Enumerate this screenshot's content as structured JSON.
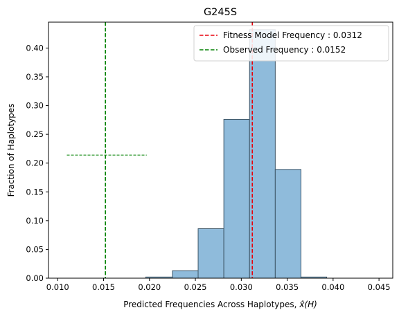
{
  "chart_data": {
    "type": "histogram",
    "title": "G245S",
    "xlabel": "Predicted Frequencies Across Haplotypes, ",
    "xlabel_math": "x̂(H)",
    "ylabel": "Fraction of Haplotypes",
    "xlim": [
      0.009,
      0.0465
    ],
    "ylim": [
      0,
      0.445
    ],
    "xticks": [
      0.01,
      0.015,
      0.02,
      0.025,
      0.03,
      0.035,
      0.04,
      0.045
    ],
    "xtick_labels": [
      "0.010",
      "0.015",
      "0.020",
      "0.025",
      "0.030",
      "0.035",
      "0.040",
      "0.045"
    ],
    "yticks": [
      0.0,
      0.05,
      0.1,
      0.15,
      0.2,
      0.25,
      0.3,
      0.35,
      0.4
    ],
    "ytick_labels": [
      "0.00",
      "0.05",
      "0.10",
      "0.15",
      "0.20",
      "0.25",
      "0.30",
      "0.35",
      "0.40"
    ],
    "bins": [
      {
        "x0": 0.0196,
        "x1": 0.0225,
        "value": 0.002
      },
      {
        "x0": 0.0225,
        "x1": 0.0253,
        "value": 0.013
      },
      {
        "x0": 0.0253,
        "x1": 0.0281,
        "value": 0.086
      },
      {
        "x0": 0.0281,
        "x1": 0.0309,
        "value": 0.276
      },
      {
        "x0": 0.0309,
        "x1": 0.0337,
        "value": 0.432
      },
      {
        "x0": 0.0337,
        "x1": 0.0365,
        "value": 0.189
      },
      {
        "x0": 0.0365,
        "x1": 0.0393,
        "value": 0.002
      }
    ],
    "bar_color": "#8fbbdb",
    "bar_edge_color": "#3d5566",
    "vlines": [
      {
        "name": "Fitness Model Frequency : 0.0312",
        "x": 0.0312,
        "color": "#e8000b",
        "style": "dashed"
      },
      {
        "name": "Observed Frequency : 0.0152",
        "x": 0.0152,
        "color": "#008000",
        "style": "dashed"
      }
    ],
    "hline": {
      "x0": 0.011,
      "x1": 0.0197,
      "y": 0.214,
      "color": "#008000",
      "style": "dashed"
    },
    "legend": {
      "placement": "top-right",
      "entries": [
        "Fitness Model Frequency : 0.0312",
        "Observed Frequency : 0.0152"
      ]
    },
    "grid": false
  }
}
